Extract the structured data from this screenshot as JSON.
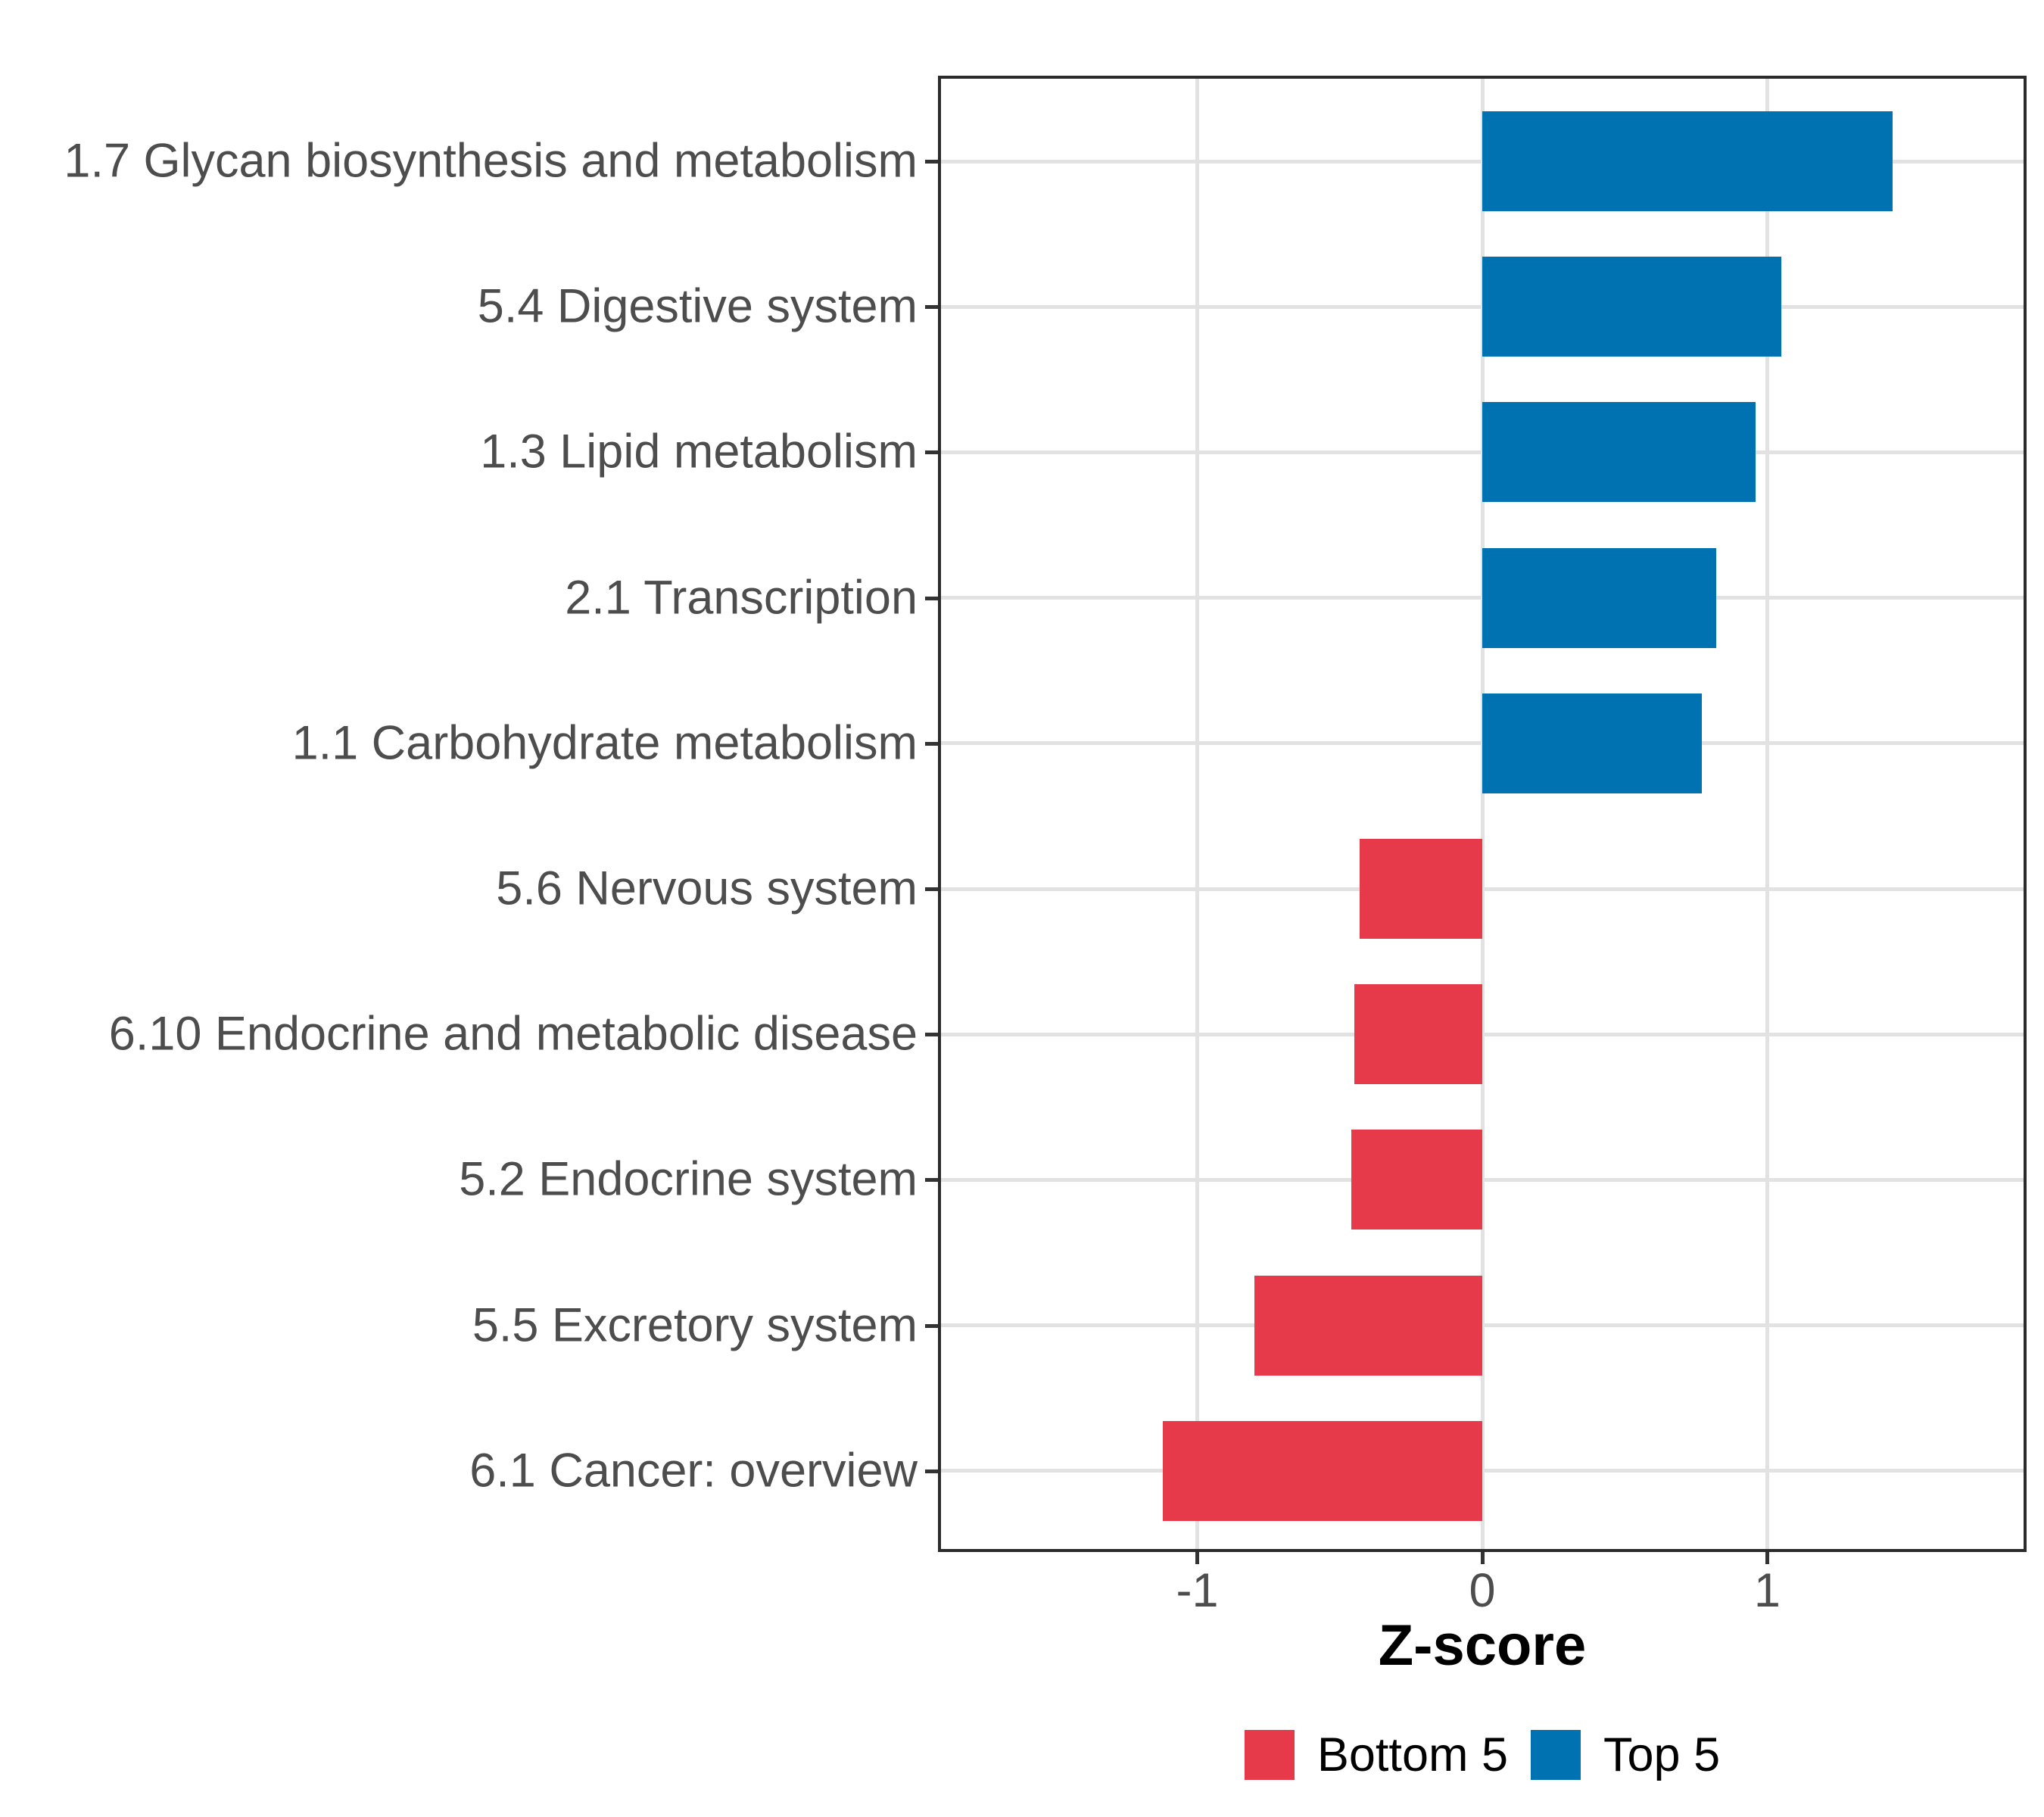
{
  "chart_data": {
    "type": "bar",
    "orientation": "horizontal",
    "title": "",
    "xlabel": "Z-score",
    "ylabel": "",
    "categories": [
      "1.7 Glycan biosynthesis and metabolism",
      "5.4 Digestive system",
      "1.3 Lipid metabolism",
      "2.1 Transcription",
      "1.1 Carbohydrate metabolism",
      "5.6 Nervous system",
      "6.10 Endocrine and metabolic disease",
      "5.2 Endocrine system",
      "5.5 Excretory system",
      "6.1 Cancer: overview"
    ],
    "values": [
      1.44,
      1.05,
      0.96,
      0.82,
      0.77,
      -0.43,
      -0.45,
      -0.46,
      -0.8,
      -1.12
    ],
    "groups": [
      "Top 5",
      "Top 5",
      "Top 5",
      "Top 5",
      "Top 5",
      "Bottom 5",
      "Bottom 5",
      "Bottom 5",
      "Bottom 5",
      "Bottom 5"
    ],
    "series_colors": {
      "Top 5": "#0072B2",
      "Bottom 5": "#E6394A"
    },
    "xlim": [
      -1.91,
      1.91
    ],
    "x_ticks": [
      "-1",
      "0",
      "1"
    ],
    "x_tick_values": [
      -1,
      0,
      1
    ],
    "grid": true,
    "legend_position": "bottom"
  },
  "legend": {
    "items": [
      {
        "label": "Bottom 5",
        "color": "#E6394A"
      },
      {
        "label": "Top 5",
        "color": "#0072B2"
      }
    ]
  },
  "colors": {
    "grid": "#E2E2E2",
    "panel_border": "#2B2B2B",
    "tick_mark": "#333333",
    "axis_text": "#4D4D4D",
    "axis_title_text": "#000000",
    "background": "#FFFFFF"
  }
}
